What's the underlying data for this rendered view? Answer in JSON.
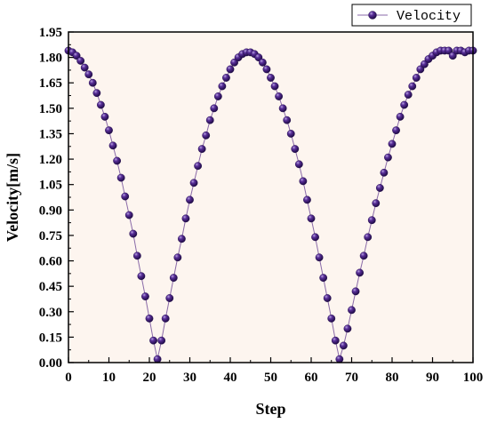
{
  "chart_data": {
    "type": "line",
    "title": "",
    "xlabel": "Step",
    "ylabel": "Velocity[m/s]",
    "xlim": [
      0,
      100
    ],
    "ylim": [
      0,
      1.95
    ],
    "x_ticks": [
      0,
      10,
      20,
      30,
      40,
      50,
      60,
      70,
      80,
      90,
      100
    ],
    "x_tick_labels": [
      "0",
      "10",
      "20",
      "30",
      "40",
      "50",
      "60",
      "70",
      "80",
      "90",
      "100"
    ],
    "y_ticks": [
      0,
      0.15,
      0.3,
      0.45,
      0.6,
      0.75,
      0.9,
      1.05,
      1.2,
      1.35,
      1.5,
      1.65,
      1.8,
      1.95
    ],
    "y_tick_labels": [
      "0.00",
      "0.15",
      "0.30",
      "0.45",
      "0.60",
      "0.75",
      "0.90",
      "1.05",
      "1.20",
      "1.35",
      "1.50",
      "1.65",
      "1.80",
      "1.95"
    ],
    "grid": false,
    "legend": {
      "position": "top-right",
      "entries": [
        "Velocity"
      ]
    },
    "plot_background": "#fdf5ef",
    "series": [
      {
        "name": "Velocity",
        "color": "#3a1870",
        "line_color": "#8a6aa8",
        "marker": "sphere",
        "x": [
          0,
          1,
          2,
          3,
          4,
          5,
          6,
          7,
          8,
          9,
          10,
          11,
          12,
          13,
          14,
          15,
          16,
          17,
          18,
          19,
          20,
          21,
          22,
          23,
          24,
          25,
          26,
          27,
          28,
          29,
          30,
          31,
          32,
          33,
          34,
          35,
          36,
          37,
          38,
          39,
          40,
          41,
          42,
          43,
          44,
          45,
          46,
          47,
          48,
          49,
          50,
          51,
          52,
          53,
          54,
          55,
          56,
          57,
          58,
          59,
          60,
          61,
          62,
          63,
          64,
          65,
          66,
          67,
          68,
          69,
          70,
          71,
          72,
          73,
          74,
          75,
          76,
          77,
          78,
          79,
          80,
          81,
          82,
          83,
          84,
          85,
          86,
          87,
          88,
          89,
          90,
          91,
          92,
          93,
          94,
          95,
          96,
          97,
          98,
          99,
          100
        ],
        "values": [
          1.84,
          1.83,
          1.81,
          1.78,
          1.74,
          1.7,
          1.65,
          1.59,
          1.52,
          1.45,
          1.37,
          1.28,
          1.19,
          1.09,
          0.98,
          0.87,
          0.76,
          0.63,
          0.51,
          0.39,
          0.26,
          0.13,
          0.02,
          0.13,
          0.26,
          0.38,
          0.5,
          0.62,
          0.73,
          0.85,
          0.96,
          1.06,
          1.16,
          1.26,
          1.34,
          1.43,
          1.5,
          1.57,
          1.63,
          1.68,
          1.73,
          1.77,
          1.8,
          1.82,
          1.83,
          1.83,
          1.82,
          1.8,
          1.77,
          1.73,
          1.68,
          1.63,
          1.57,
          1.5,
          1.43,
          1.35,
          1.26,
          1.17,
          1.07,
          0.96,
          0.85,
          0.74,
          0.62,
          0.5,
          0.38,
          0.26,
          0.13,
          0.02,
          0.1,
          0.2,
          0.31,
          0.42,
          0.53,
          0.63,
          0.74,
          0.84,
          0.94,
          1.03,
          1.12,
          1.21,
          1.29,
          1.37,
          1.45,
          1.52,
          1.58,
          1.63,
          1.68,
          1.73,
          1.76,
          1.79,
          1.81,
          1.83,
          1.84,
          1.84,
          1.84,
          1.81,
          1.84,
          1.84,
          1.83,
          1.84,
          1.84
        ]
      }
    ]
  }
}
